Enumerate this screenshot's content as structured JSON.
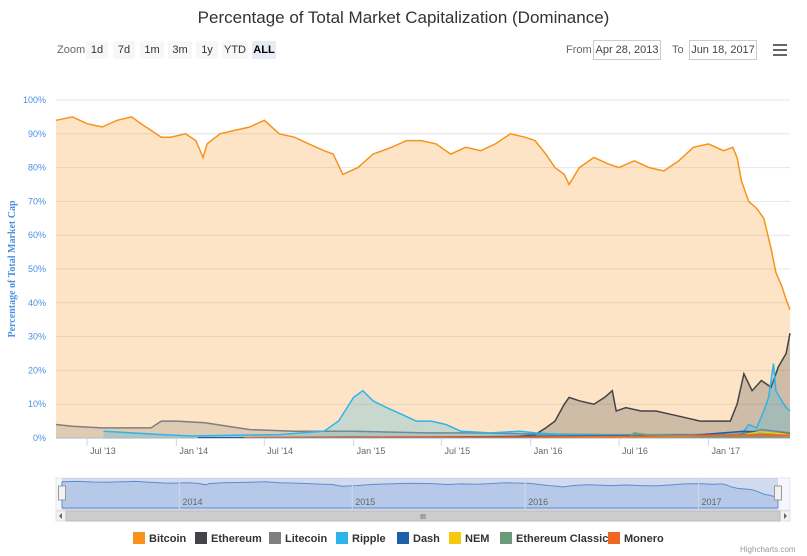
{
  "chart_data": {
    "type": "area",
    "title": "Percentage of Total Market Capitalization (Dominance)",
    "ylabel": "Percentage of Total Market Cap",
    "ylim": [
      0,
      100
    ],
    "y_ticks": [
      "0%",
      "10%",
      "20%",
      "30%",
      "40%",
      "50%",
      "60%",
      "70%",
      "80%",
      "90%",
      "100%"
    ],
    "x_ticks": [
      "Jul '13",
      "Jan '14",
      "Jul '14",
      "Jan '15",
      "Jul '15",
      "Jan '16",
      "Jul '16",
      "Jan '17"
    ],
    "x_range": [
      "2013-04-28",
      "2017-06-18"
    ],
    "grid": true,
    "legend_position": "bottom",
    "series": [
      {
        "name": "Bitcoin",
        "color": "#f7931a",
        "points": [
          [
            "2013-04-28",
            94
          ],
          [
            "2013-06-01",
            95
          ],
          [
            "2013-07-01",
            93
          ],
          [
            "2013-08-01",
            92
          ],
          [
            "2013-09-01",
            94
          ],
          [
            "2013-10-01",
            95
          ],
          [
            "2013-10-20",
            93
          ],
          [
            "2013-11-10",
            91
          ],
          [
            "2013-12-01",
            89
          ],
          [
            "2013-12-20",
            89
          ],
          [
            "2014-01-20",
            90
          ],
          [
            "2014-02-10",
            88
          ],
          [
            "2014-02-25",
            83
          ],
          [
            "2014-03-05",
            87
          ],
          [
            "2014-04-01",
            90
          ],
          [
            "2014-05-01",
            91
          ],
          [
            "2014-06-01",
            92
          ],
          [
            "2014-07-01",
            94
          ],
          [
            "2014-08-01",
            90
          ],
          [
            "2014-09-01",
            89
          ],
          [
            "2014-10-01",
            87
          ],
          [
            "2014-11-01",
            85
          ],
          [
            "2014-11-20",
            84
          ],
          [
            "2014-12-10",
            78
          ],
          [
            "2015-01-10",
            80
          ],
          [
            "2015-02-10",
            84
          ],
          [
            "2015-03-20",
            86
          ],
          [
            "2015-04-20",
            88
          ],
          [
            "2015-05-20",
            88
          ],
          [
            "2015-06-20",
            87
          ],
          [
            "2015-07-20",
            84
          ],
          [
            "2015-08-20",
            86
          ],
          [
            "2015-09-20",
            85
          ],
          [
            "2015-10-20",
            87
          ],
          [
            "2015-11-20",
            90
          ],
          [
            "2015-12-20",
            89
          ],
          [
            "2016-01-10",
            88
          ],
          [
            "2016-02-01",
            84
          ],
          [
            "2016-02-20",
            80
          ],
          [
            "2016-03-10",
            78
          ],
          [
            "2016-03-20",
            75
          ],
          [
            "2016-04-10",
            80
          ],
          [
            "2016-05-10",
            83
          ],
          [
            "2016-06-10",
            81
          ],
          [
            "2016-07-01",
            80
          ],
          [
            "2016-08-01",
            82
          ],
          [
            "2016-09-01",
            80
          ],
          [
            "2016-10-01",
            79
          ],
          [
            "2016-11-01",
            82
          ],
          [
            "2016-12-01",
            86
          ],
          [
            "2017-01-01",
            87
          ],
          [
            "2017-02-01",
            85
          ],
          [
            "2017-02-20",
            86
          ],
          [
            "2017-03-01",
            83
          ],
          [
            "2017-03-10",
            76
          ],
          [
            "2017-03-25",
            70
          ],
          [
            "2017-04-10",
            68
          ],
          [
            "2017-04-25",
            65
          ],
          [
            "2017-05-10",
            56
          ],
          [
            "2017-05-20",
            49
          ],
          [
            "2017-06-01",
            45
          ],
          [
            "2017-06-10",
            41
          ],
          [
            "2017-06-18",
            38
          ]
        ]
      },
      {
        "name": "Ethereum",
        "color": "#434348",
        "points": [
          [
            "2015-08-07",
            0.3
          ],
          [
            "2015-12-01",
            0.4
          ],
          [
            "2016-01-10",
            1
          ],
          [
            "2016-02-01",
            3
          ],
          [
            "2016-02-20",
            5
          ],
          [
            "2016-03-10",
            10
          ],
          [
            "2016-03-20",
            12
          ],
          [
            "2016-04-10",
            11
          ],
          [
            "2016-05-10",
            10
          ],
          [
            "2016-06-01",
            12
          ],
          [
            "2016-06-17",
            14
          ],
          [
            "2016-06-25",
            8
          ],
          [
            "2016-07-15",
            9
          ],
          [
            "2016-08-15",
            8
          ],
          [
            "2016-09-15",
            8
          ],
          [
            "2016-10-15",
            7
          ],
          [
            "2016-11-15",
            6
          ],
          [
            "2016-12-15",
            5
          ],
          [
            "2017-01-15",
            5
          ],
          [
            "2017-02-15",
            5
          ],
          [
            "2017-03-01",
            10
          ],
          [
            "2017-03-15",
            19
          ],
          [
            "2017-04-01",
            14
          ],
          [
            "2017-04-20",
            17
          ],
          [
            "2017-05-10",
            15
          ],
          [
            "2017-05-25",
            21
          ],
          [
            "2017-06-10",
            25
          ],
          [
            "2017-06-18",
            31
          ]
        ]
      },
      {
        "name": "Litecoin",
        "color": "#7f7f7f",
        "points": [
          [
            "2013-04-28",
            4
          ],
          [
            "2013-06-01",
            3.5
          ],
          [
            "2013-08-01",
            3
          ],
          [
            "2013-10-01",
            3
          ],
          [
            "2013-11-10",
            3
          ],
          [
            "2013-12-01",
            5
          ],
          [
            "2014-01-01",
            5
          ],
          [
            "2014-03-01",
            4.5
          ],
          [
            "2014-06-01",
            2.5
          ],
          [
            "2014-09-01",
            2
          ],
          [
            "2015-01-01",
            2
          ],
          [
            "2015-06-01",
            1.5
          ],
          [
            "2015-09-01",
            1.5
          ],
          [
            "2016-01-01",
            1.2
          ],
          [
            "2016-06-01",
            1
          ],
          [
            "2016-12-01",
            1
          ],
          [
            "2017-03-01",
            1
          ],
          [
            "2017-04-20",
            2.5
          ],
          [
            "2017-06-18",
            1.5
          ]
        ]
      },
      {
        "name": "Ripple",
        "color": "#2eb4e8",
        "points": [
          [
            "2013-08-04",
            2
          ],
          [
            "2013-10-01",
            1.5
          ],
          [
            "2013-12-01",
            1
          ],
          [
            "2014-02-01",
            0.6
          ],
          [
            "2014-05-01",
            0.8
          ],
          [
            "2014-08-01",
            1
          ],
          [
            "2014-11-01",
            2
          ],
          [
            "2014-12-01",
            5
          ],
          [
            "2015-01-01",
            12
          ],
          [
            "2015-01-20",
            14
          ],
          [
            "2015-02-10",
            11
          ],
          [
            "2015-03-10",
            9
          ],
          [
            "2015-04-10",
            7
          ],
          [
            "2015-05-10",
            5
          ],
          [
            "2015-06-10",
            5
          ],
          [
            "2015-07-10",
            4
          ],
          [
            "2015-08-10",
            2
          ],
          [
            "2015-10-10",
            1.5
          ],
          [
            "2015-12-10",
            2
          ],
          [
            "2016-01-10",
            1.5
          ],
          [
            "2016-03-10",
            1
          ],
          [
            "2016-06-10",
            0.8
          ],
          [
            "2016-10-10",
            1
          ],
          [
            "2017-01-10",
            1
          ],
          [
            "2017-03-10",
            1
          ],
          [
            "2017-03-25",
            4
          ],
          [
            "2017-04-10",
            3
          ],
          [
            "2017-04-25",
            8
          ],
          [
            "2017-05-05",
            12
          ],
          [
            "2017-05-15",
            22
          ],
          [
            "2017-05-20",
            14
          ],
          [
            "2017-06-01",
            11
          ],
          [
            "2017-06-10",
            9
          ],
          [
            "2017-06-18",
            8
          ]
        ]
      },
      {
        "name": "Dash",
        "color": "#1f5fa6",
        "points": [
          [
            "2014-02-14",
            0.05
          ],
          [
            "2014-06-01",
            0.1
          ],
          [
            "2015-01-01",
            0.2
          ],
          [
            "2015-07-01",
            0.3
          ],
          [
            "2016-01-01",
            0.5
          ],
          [
            "2016-06-01",
            0.6
          ],
          [
            "2016-12-01",
            0.8
          ],
          [
            "2017-03-15",
            2
          ],
          [
            "2017-06-18",
            1.2
          ]
        ]
      },
      {
        "name": "NEM",
        "color": "#f6c90e",
        "points": [
          [
            "2015-04-01",
            0.05
          ],
          [
            "2015-12-01",
            0.2
          ],
          [
            "2016-06-01",
            0.3
          ],
          [
            "2016-12-01",
            0.5
          ],
          [
            "2017-03-15",
            1
          ],
          [
            "2017-04-15",
            1.8
          ],
          [
            "2017-05-15",
            1.5
          ],
          [
            "2017-06-18",
            1
          ]
        ]
      },
      {
        "name": "Ethereum Classic",
        "color": "#6b9b7b",
        "points": [
          [
            "2016-07-24",
            0.5
          ],
          [
            "2016-08-01",
            1.5
          ],
          [
            "2016-09-01",
            0.8
          ],
          [
            "2017-01-01",
            0.5
          ],
          [
            "2017-05-01",
            0.6
          ],
          [
            "2017-06-18",
            0.8
          ]
        ]
      },
      {
        "name": "Monero",
        "color": "#f26522",
        "points": [
          [
            "2014-05-21",
            0.05
          ],
          [
            "2015-01-01",
            0.1
          ],
          [
            "2016-01-01",
            0.2
          ],
          [
            "2016-09-01",
            0.5
          ],
          [
            "2017-01-01",
            0.8
          ],
          [
            "2017-04-01",
            1
          ],
          [
            "2017-06-18",
            0.8
          ]
        ]
      }
    ]
  },
  "toolbar": {
    "zoom_label": "Zoom",
    "zoom_buttons": [
      "1d",
      "7d",
      "1m",
      "3m",
      "1y",
      "YTD",
      "ALL"
    ],
    "active_zoom": "ALL",
    "from_label": "From",
    "from_value": "Apr 28, 2013",
    "to_label": "To",
    "to_value": "Jun 18, 2017"
  },
  "navigator": {
    "year_labels": [
      "2014",
      "2015",
      "2016",
      "2017"
    ],
    "scroll_thumb_glyph": "III"
  },
  "credits": "Highcharts.com"
}
